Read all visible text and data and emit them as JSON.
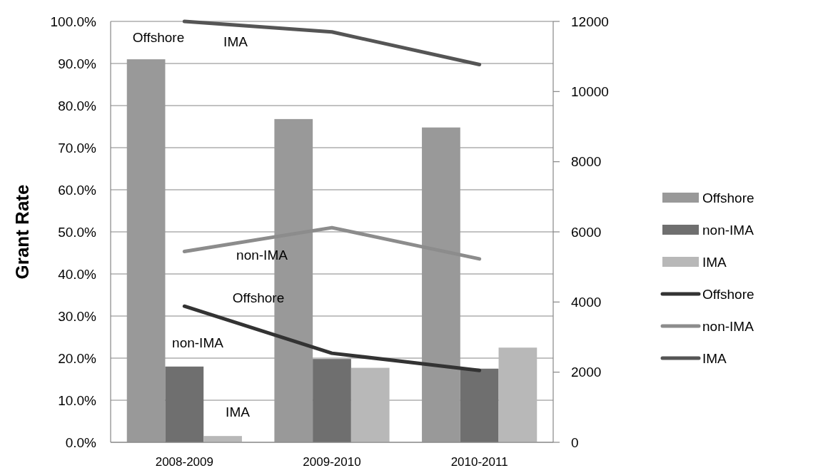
{
  "chart_data": {
    "type": "bar",
    "ylabel": "Grant Rate",
    "categories": [
      "2008-2009",
      "2009-2010",
      "2010-2011"
    ],
    "series": [
      {
        "name": "Offshore",
        "color": "#999999",
        "values": [
          91,
          76.8,
          74.8
        ]
      },
      {
        "name": "non-IMA",
        "color": "#6f6f6f",
        "values": [
          18,
          19.8,
          17.5
        ]
      },
      {
        "name": "IMA",
        "color": "#b8b8b8",
        "values": [
          1.5,
          17.7,
          22.5
        ]
      },
      {
        "name": "Offshore",
        "type": "line",
        "axis": "y2",
        "color": "#333333",
        "values": [
          3880,
          2540,
          2050
        ]
      },
      {
        "name": "non-IMA",
        "type": "line",
        "axis": "y2",
        "color": "#8c8c8c",
        "values": [
          5440,
          6120,
          5230
        ]
      },
      {
        "name": "IMA",
        "type": "line",
        "axis": "y2",
        "color": "#555555",
        "values": [
          12000,
          11700,
          10770
        ]
      }
    ],
    "ylim": [
      0,
      100
    ],
    "yticks": [
      {
        "value": 0,
        "label": "0.0%"
      },
      {
        "value": 10,
        "label": "10.0%"
      },
      {
        "value": 20,
        "label": "20.0%"
      },
      {
        "value": 30,
        "label": "30.0%"
      },
      {
        "value": 40,
        "label": "40.0%"
      },
      {
        "value": 50,
        "label": "50.0%"
      },
      {
        "value": 60,
        "label": "60.0%"
      },
      {
        "value": 70,
        "label": "70.0%"
      },
      {
        "value": 80,
        "label": "80.0%"
      },
      {
        "value": 90,
        "label": "90.0%"
      },
      {
        "value": 100,
        "label": "100.0%"
      }
    ],
    "y2lim": [
      0,
      12000
    ],
    "y2ticks": [
      0,
      2000,
      4000,
      6000,
      8000,
      10000,
      12000
    ],
    "grid": "y",
    "legend": "right",
    "marker": "none",
    "line_style": "solid",
    "annotations": [
      "Offshore",
      "IMA",
      "non-IMA",
      "Offshore",
      "non-IMA",
      "IMA"
    ]
  }
}
